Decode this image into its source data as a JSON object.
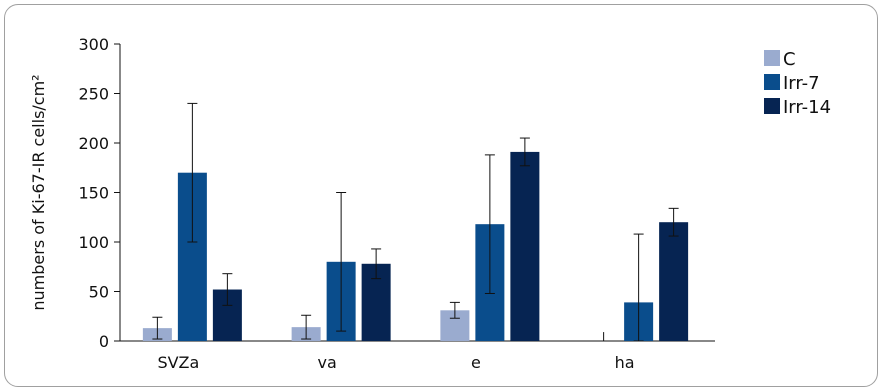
{
  "chart_data": {
    "type": "bar",
    "ylabel": "numbers of Ki-67-IR cells/cm²",
    "ylim": [
      0,
      300
    ],
    "yticks": [
      0,
      50,
      100,
      150,
      200,
      250,
      300
    ],
    "categories": [
      "SVZa",
      "va",
      "e",
      "ha"
    ],
    "series": [
      {
        "name": "C",
        "color": "#9aabcf",
        "values": [
          13,
          14,
          31,
          0
        ],
        "errors": [
          11,
          12,
          8,
          9
        ]
      },
      {
        "name": "Irr-7",
        "color": "#0a4d8c",
        "values": [
          170,
          80,
          118,
          39
        ],
        "errors": [
          70,
          70,
          70,
          69
        ]
      },
      {
        "name": "Irr-14",
        "color": "#062452",
        "values": [
          52,
          78,
          191,
          120
        ],
        "errors": [
          16,
          15,
          14,
          14
        ]
      }
    ],
    "legend": "right",
    "grid": false
  }
}
